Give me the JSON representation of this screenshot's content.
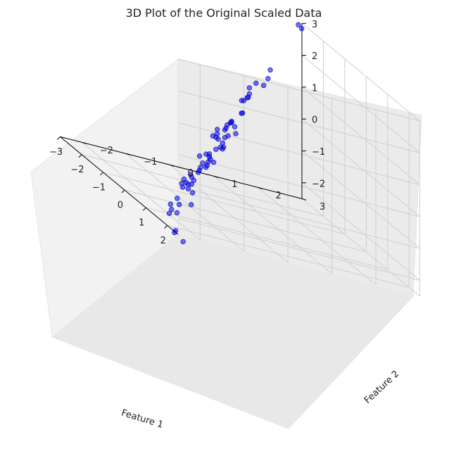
{
  "chart_data": {
    "type": "scatter",
    "title": "3D Plot of the Original Scaled Data",
    "xlabel": "Feature 1",
    "ylabel": "Feature 2",
    "zlabel": "",
    "x_ticks": [
      "−3",
      "−2",
      "−1",
      "0",
      "1",
      "2"
    ],
    "y_ticks": [
      "−2",
      "−1",
      "0",
      "1",
      "2",
      "3"
    ],
    "z_ticks": [
      "−2",
      "−1",
      "0",
      "1",
      "2",
      "3"
    ],
    "xlim": [
      -3,
      2.5
    ],
    "ylim": [
      -2.5,
      3
    ],
    "zlim": [
      -2.5,
      3
    ],
    "marker_color": "#0000ff",
    "marker_alpha": 0.55,
    "grid": true,
    "points": [
      [
        -2.7,
        2.85,
        2.95
      ],
      [
        -2.55,
        2.7,
        3.1
      ],
      [
        -1.4,
        1.5,
        1.9
      ],
      [
        -1.3,
        1.4,
        1.65
      ],
      [
        -1.3,
        1.3,
        1.4
      ],
      [
        -1.45,
        1.2,
        1.35
      ],
      [
        -1.45,
        1.05,
        1.15
      ],
      [
        -1.35,
        1.0,
        1.0
      ],
      [
        -1.3,
        0.95,
        0.9
      ],
      [
        -1.25,
        0.9,
        0.9
      ],
      [
        -1.3,
        0.8,
        0.75
      ],
      [
        -1.2,
        0.8,
        0.8
      ],
      [
        -0.95,
        0.65,
        0.5
      ],
      [
        -0.9,
        0.6,
        0.5
      ],
      [
        -0.95,
        0.4,
        0.15
      ],
      [
        -0.85,
        0.35,
        0.15
      ],
      [
        -0.8,
        0.3,
        0.15
      ],
      [
        -0.95,
        0.3,
        0.0
      ],
      [
        -0.7,
        0.35,
        0.1
      ],
      [
        -0.8,
        0.2,
        -0.05
      ],
      [
        -0.75,
        0.15,
        -0.1
      ],
      [
        -0.9,
        0.05,
        -0.2
      ],
      [
        -0.55,
        0.3,
        -0.05
      ],
      [
        -0.6,
        0.15,
        -0.2
      ],
      [
        -0.65,
        0.1,
        -0.3
      ],
      [
        -0.8,
        0.0,
        -0.3
      ],
      [
        -0.8,
        -0.1,
        -0.4
      ],
      [
        -0.75,
        -0.05,
        -0.4
      ],
      [
        -0.65,
        -0.05,
        -0.4
      ],
      [
        -0.55,
        0.0,
        -0.45
      ],
      [
        -0.5,
        0.0,
        -0.55
      ],
      [
        -0.55,
        -0.05,
        -0.6
      ],
      [
        -0.45,
        -0.05,
        -0.6
      ],
      [
        -0.55,
        -0.15,
        -0.7
      ],
      [
        -0.55,
        -0.3,
        -0.9
      ],
      [
        -0.6,
        -0.35,
        -0.95
      ],
      [
        -0.7,
        -0.45,
        -1.1
      ],
      [
        -0.45,
        -0.35,
        -0.95
      ],
      [
        -0.4,
        -0.35,
        -1.0
      ],
      [
        -0.35,
        -0.3,
        -1.05
      ],
      [
        -0.4,
        -0.4,
        -1.1
      ],
      [
        -0.45,
        -0.5,
        -1.2
      ],
      [
        -0.35,
        -0.45,
        -1.2
      ],
      [
        -0.3,
        -0.5,
        -1.25
      ],
      [
        -0.45,
        -0.55,
        -1.35
      ],
      [
        -0.3,
        -0.65,
        -1.4
      ],
      [
        -0.25,
        -0.7,
        -1.45
      ],
      [
        -0.3,
        -0.85,
        -1.6
      ],
      [
        -0.25,
        -0.85,
        -1.65
      ],
      [
        -0.15,
        -0.85,
        -1.7
      ],
      [
        -0.05,
        -0.95,
        -1.8
      ],
      [
        -0.3,
        -1.0,
        -1.8
      ],
      [
        -0.2,
        -1.0,
        -1.85
      ],
      [
        -0.1,
        -1.0,
        -1.85
      ],
      [
        0.0,
        -1.05,
        -1.95
      ],
      [
        0.1,
        -1.0,
        -2.0
      ],
      [
        -0.3,
        -1.05,
        -1.95
      ],
      [
        -0.15,
        -1.1,
        -2.0
      ],
      [
        0.1,
        -1.35,
        -2.3
      ],
      [
        0.45,
        -1.2,
        -2.25
      ],
      [
        0.3,
        -1.4,
        -2.4
      ],
      [
        0.2,
        -1.55,
        -2.5
      ],
      [
        0.35,
        -1.6,
        -2.6
      ],
      [
        0.5,
        -1.55,
        -2.6
      ],
      [
        0.45,
        -1.7,
        -2.7
      ],
      [
        0.95,
        -1.8,
        -3.0
      ],
      [
        1.0,
        -1.85,
        -3.05
      ],
      [
        1.3,
        -1.8,
        -3.15
      ]
    ]
  }
}
